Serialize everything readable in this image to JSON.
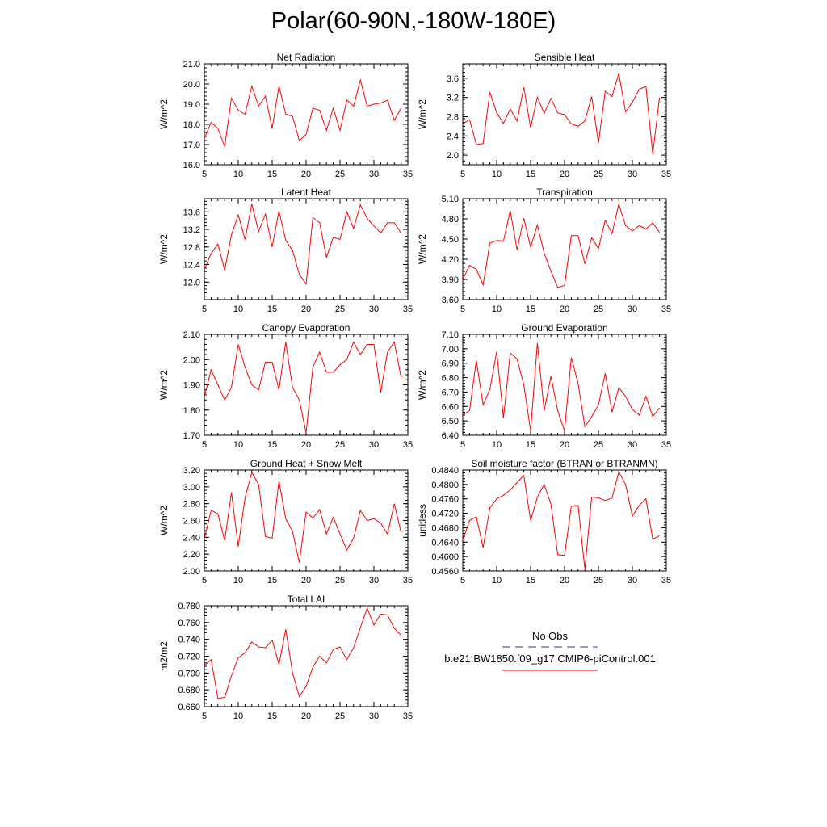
{
  "title": "Polar(60-90N,-180W-180E)",
  "line_color": "#ff0000",
  "obs_line_color": "#3333aa",
  "legend": {
    "no_obs_label": "No Obs",
    "model_label": "b.e21.BW1850.f09_g17.CMIP6-piControl.001"
  },
  "chart_data": [
    {
      "type": "line",
      "title": "Net Radiation",
      "ylabel": "W/m^2",
      "xlim": [
        5,
        35
      ],
      "ylim": [
        16.0,
        21.0
      ],
      "xticks": [
        5,
        10,
        15,
        20,
        25,
        30,
        35
      ],
      "yticks": [
        "16.0",
        "17.0",
        "18.0",
        "19.0",
        "20.0",
        "21.0"
      ],
      "x": [
        5,
        6,
        7,
        8,
        9,
        10,
        11,
        12,
        13,
        14,
        15,
        16,
        17,
        18,
        19,
        20,
        21,
        22,
        23,
        24,
        25,
        26,
        27,
        28,
        29,
        30,
        31,
        32,
        33,
        34
      ],
      "values": [
        17.3,
        18.1,
        17.8,
        16.9,
        19.3,
        18.7,
        18.5,
        19.9,
        18.9,
        19.4,
        17.8,
        19.9,
        18.5,
        18.4,
        17.2,
        17.5,
        18.8,
        18.7,
        17.7,
        18.8,
        17.7,
        19.2,
        18.9,
        20.2,
        18.9,
        19.0,
        19.05,
        19.2,
        18.2,
        18.8
      ]
    },
    {
      "type": "line",
      "title": "Sensible Heat",
      "ylabel": "W/m^2",
      "xlim": [
        5,
        35
      ],
      "ylim": [
        1.8,
        3.9
      ],
      "xticks": [
        5,
        10,
        15,
        20,
        25,
        30,
        35
      ],
      "yticks": [
        "2.0",
        "2.4",
        "2.8",
        "3.2",
        "3.6"
      ],
      "x": [
        5,
        6,
        7,
        8,
        9,
        10,
        11,
        12,
        13,
        14,
        15,
        16,
        17,
        18,
        19,
        20,
        21,
        22,
        23,
        24,
        25,
        26,
        27,
        28,
        29,
        30,
        31,
        32,
        33,
        34
      ],
      "values": [
        2.65,
        2.74,
        2.22,
        2.24,
        3.31,
        2.88,
        2.66,
        2.96,
        2.71,
        3.41,
        2.57,
        3.21,
        2.87,
        3.18,
        2.88,
        2.84,
        2.65,
        2.6,
        2.71,
        3.22,
        2.25,
        3.33,
        3.22,
        3.7,
        2.9,
        3.1,
        3.37,
        3.43,
        2.02,
        3.2
      ]
    },
    {
      "type": "line",
      "title": "Latent Heat",
      "ylabel": "W/m^2",
      "xlim": [
        5,
        35
      ],
      "ylim": [
        11.6,
        13.9
      ],
      "xticks": [
        5,
        10,
        15,
        20,
        25,
        30,
        35
      ],
      "yticks": [
        "12.0",
        "12.4",
        "12.8",
        "13.2",
        "13.6"
      ],
      "x": [
        5,
        6,
        7,
        8,
        9,
        10,
        11,
        12,
        13,
        14,
        15,
        16,
        17,
        18,
        19,
        20,
        21,
        22,
        23,
        24,
        25,
        26,
        27,
        28,
        29,
        30,
        31,
        32,
        33,
        34
      ],
      "values": [
        12.28,
        12.65,
        12.87,
        12.27,
        13.08,
        13.53,
        12.97,
        13.78,
        13.15,
        13.55,
        12.8,
        13.62,
        12.95,
        12.72,
        12.18,
        11.95,
        13.47,
        13.35,
        12.56,
        13.02,
        12.97,
        13.6,
        13.22,
        13.76,
        13.45,
        13.28,
        13.12,
        13.35,
        13.35,
        13.12
      ]
    },
    {
      "type": "line",
      "title": "Transpiration",
      "ylabel": "W/m^2",
      "xlim": [
        5,
        35
      ],
      "ylim": [
        3.6,
        5.1
      ],
      "xticks": [
        5,
        10,
        15,
        20,
        25,
        30,
        35
      ],
      "yticks": [
        "3.60",
        "3.90",
        "4.20",
        "4.50",
        "4.80",
        "5.10"
      ],
      "x": [
        5,
        6,
        7,
        8,
        9,
        10,
        11,
        12,
        13,
        14,
        15,
        16,
        17,
        18,
        19,
        20,
        21,
        22,
        23,
        24,
        25,
        26,
        27,
        28,
        29,
        30,
        31,
        32,
        33,
        34
      ],
      "values": [
        3.9,
        4.11,
        4.05,
        3.82,
        4.44,
        4.48,
        4.47,
        4.92,
        4.34,
        4.81,
        4.38,
        4.71,
        4.29,
        4.02,
        3.78,
        3.81,
        4.55,
        4.55,
        4.13,
        4.52,
        4.36,
        4.78,
        4.58,
        5.02,
        4.7,
        4.62,
        4.7,
        4.65,
        4.74,
        4.6
      ]
    },
    {
      "type": "line",
      "title": "Canopy Evaporation",
      "ylabel": "W/m^2",
      "xlim": [
        5,
        35
      ],
      "ylim": [
        1.7,
        2.1
      ],
      "xticks": [
        5,
        10,
        15,
        20,
        25,
        30,
        35
      ],
      "yticks": [
        "1.70",
        "1.80",
        "1.90",
        "2.00",
        "2.10"
      ],
      "x": [
        5,
        6,
        7,
        8,
        9,
        10,
        11,
        12,
        13,
        14,
        15,
        16,
        17,
        18,
        19,
        20,
        21,
        22,
        23,
        24,
        25,
        26,
        27,
        28,
        29,
        30,
        31,
        32,
        33,
        34
      ],
      "values": [
        1.85,
        1.96,
        1.9,
        1.84,
        1.89,
        2.06,
        1.97,
        1.9,
        1.88,
        1.99,
        1.99,
        1.88,
        2.07,
        1.89,
        1.84,
        1.71,
        1.97,
        2.03,
        1.95,
        1.95,
        1.98,
        2.0,
        2.07,
        2.02,
        2.06,
        2.06,
        1.87,
        2.03,
        2.07,
        1.93
      ]
    },
    {
      "type": "line",
      "title": "Ground Evaporation",
      "ylabel": "W/m^2",
      "xlim": [
        5,
        35
      ],
      "ylim": [
        6.4,
        7.1
      ],
      "xticks": [
        5,
        10,
        15,
        20,
        25,
        30,
        35
      ],
      "yticks": [
        "6.40",
        "6.50",
        "6.60",
        "6.70",
        "6.80",
        "6.90",
        "7.00",
        "7.10"
      ],
      "x": [
        5,
        6,
        7,
        8,
        9,
        10,
        11,
        12,
        13,
        14,
        15,
        16,
        17,
        18,
        19,
        20,
        21,
        22,
        23,
        24,
        25,
        26,
        27,
        28,
        29,
        30,
        31,
        32,
        33,
        34
      ],
      "values": [
        6.54,
        6.57,
        6.92,
        6.61,
        6.72,
        6.98,
        6.52,
        6.97,
        6.93,
        6.75,
        6.43,
        7.04,
        6.57,
        6.81,
        6.57,
        6.43,
        6.94,
        6.76,
        6.46,
        6.53,
        6.61,
        6.83,
        6.56,
        6.73,
        6.67,
        6.58,
        6.54,
        6.67,
        6.53,
        6.59
      ]
    },
    {
      "type": "line",
      "title": "Ground Heat + Snow Melt",
      "ylabel": "W/m^2",
      "xlim": [
        5,
        35
      ],
      "ylim": [
        2.0,
        3.2
      ],
      "xticks": [
        5,
        10,
        15,
        20,
        25,
        30,
        35
      ],
      "yticks": [
        "2.00",
        "2.20",
        "2.40",
        "2.60",
        "2.80",
        "3.00",
        "3.20"
      ],
      "x": [
        5,
        6,
        7,
        8,
        9,
        10,
        11,
        12,
        13,
        14,
        15,
        16,
        17,
        18,
        19,
        20,
        21,
        22,
        23,
        24,
        25,
        26,
        27,
        28,
        29,
        30,
        31,
        32,
        33,
        34
      ],
      "values": [
        2.38,
        2.72,
        2.68,
        2.36,
        2.93,
        2.29,
        2.87,
        3.17,
        3.03,
        2.41,
        2.39,
        3.07,
        2.62,
        2.47,
        2.1,
        2.7,
        2.63,
        2.73,
        2.44,
        2.64,
        2.44,
        2.25,
        2.39,
        2.72,
        2.6,
        2.62,
        2.57,
        2.44,
        2.8,
        2.46
      ]
    },
    {
      "type": "line",
      "title": "Soil moisture factor (BTRAN or BTRANMN)",
      "ylabel": "unitless",
      "xlim": [
        5,
        35
      ],
      "ylim": [
        0.456,
        0.484
      ],
      "xticks": [
        5,
        10,
        15,
        20,
        25,
        30,
        35
      ],
      "yticks": [
        "0.4560",
        "0.4600",
        "0.4640",
        "0.4680",
        "0.4720",
        "0.4760",
        "0.4800",
        "0.4840"
      ],
      "x": [
        5,
        6,
        7,
        8,
        9,
        10,
        11,
        12,
        13,
        14,
        15,
        16,
        17,
        18,
        19,
        20,
        21,
        22,
        23,
        24,
        25,
        26,
        27,
        28,
        29,
        30,
        31,
        32,
        33,
        34
      ],
      "values": [
        0.4645,
        0.47,
        0.471,
        0.4625,
        0.4735,
        0.476,
        0.477,
        0.4785,
        0.4805,
        0.4825,
        0.47,
        0.4765,
        0.48,
        0.4745,
        0.4605,
        0.4603,
        0.474,
        0.4742,
        0.4565,
        0.4765,
        0.4763,
        0.4755,
        0.4762,
        0.4835,
        0.48,
        0.4712,
        0.4742,
        0.476,
        0.4648,
        0.4658
      ]
    },
    {
      "type": "line",
      "title": "Total LAI",
      "ylabel": "m2/m2",
      "xlim": [
        5,
        35
      ],
      "ylim": [
        0.66,
        0.78
      ],
      "xticks": [
        5,
        10,
        15,
        20,
        25,
        30,
        35
      ],
      "yticks": [
        "0.660",
        "0.680",
        "0.700",
        "0.720",
        "0.740",
        "0.760",
        "0.780"
      ],
      "x": [
        5,
        6,
        7,
        8,
        9,
        10,
        11,
        12,
        13,
        14,
        15,
        16,
        17,
        18,
        19,
        20,
        21,
        22,
        23,
        24,
        25,
        26,
        27,
        28,
        29,
        30,
        31,
        32,
        33,
        34
      ],
      "values": [
        0.709,
        0.716,
        0.67,
        0.671,
        0.697,
        0.718,
        0.724,
        0.737,
        0.731,
        0.73,
        0.739,
        0.71,
        0.752,
        0.7,
        0.672,
        0.684,
        0.707,
        0.72,
        0.712,
        0.728,
        0.731,
        0.716,
        0.73,
        0.754,
        0.777,
        0.757,
        0.77,
        0.769,
        0.753,
        0.745
      ]
    }
  ]
}
